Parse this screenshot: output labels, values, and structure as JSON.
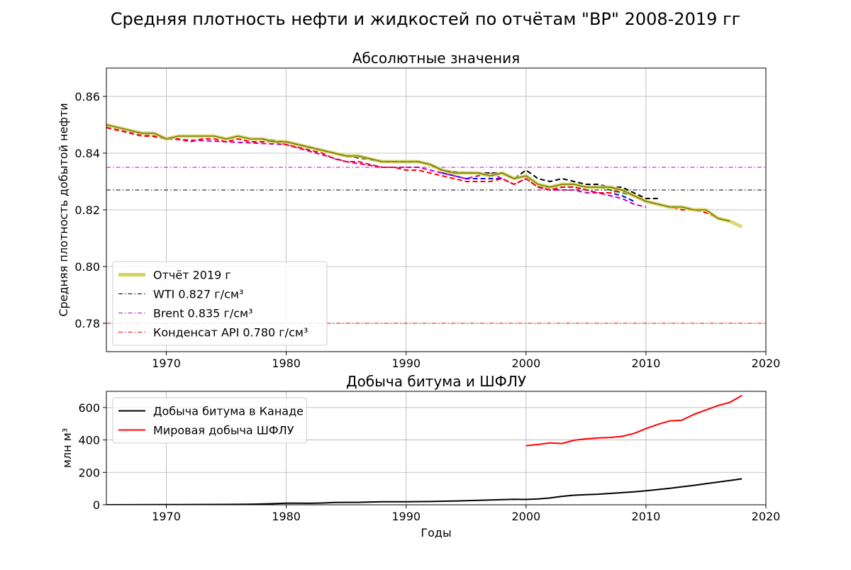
{
  "figure_title": "Средняя плотность нефти и жидкостей по отчётам \"BP\" 2008-2019 гг",
  "chart_data": [
    {
      "type": "line",
      "title": "Абсолютные значения",
      "xlabel": "",
      "ylabel": "Средняя плотность добытой нефти",
      "xlim": [
        1965,
        2020
      ],
      "ylim": [
        0.77,
        0.87
      ],
      "xticks": [
        1970,
        1980,
        1990,
        2000,
        2010,
        2020
      ],
      "yticks": [
        0.78,
        0.8,
        0.82,
        0.84,
        0.86
      ],
      "ytick_labels": [
        "0.78",
        "0.80",
        "0.82",
        "0.84",
        "0.86"
      ],
      "grid": true,
      "legend_position": "lower-left",
      "legend": [
        {
          "label": "Отчёт 2019 г",
          "color": "#d4d45a",
          "style": "thick-solid"
        },
        {
          "label": "WTI 0.827 г/см³",
          "color": "#000000",
          "style": "dashdot"
        },
        {
          "label": "Brent 0.835 г/см³",
          "color": "#c000c0",
          "style": "dashdot"
        },
        {
          "label": "Конденсат API 0.780 г/см³",
          "color": "#ff0000",
          "style": "dashdot"
        }
      ],
      "reference_lines": [
        {
          "value": 0.827,
          "color": "#000000"
        },
        {
          "value": 0.835,
          "color": "#c000c0"
        },
        {
          "value": 0.78,
          "color": "#ff0000"
        }
      ],
      "series": [
        {
          "style": "dashed",
          "color": "#000000",
          "x": [
            1978,
            1980,
            1985,
            1988,
            1991,
            1992,
            1993,
            1995,
            1997,
            1998,
            1999,
            2000,
            2001,
            2002,
            2003,
            2004,
            2005,
            2006,
            2007,
            2008,
            2009,
            2010,
            2011
          ],
          "y": [
            0.845,
            0.844,
            0.839,
            0.837,
            0.837,
            0.836,
            0.834,
            0.833,
            0.833,
            0.833,
            0.831,
            0.834,
            0.831,
            0.83,
            0.831,
            0.83,
            0.829,
            0.829,
            0.828,
            0.828,
            0.826,
            0.824,
            0.824
          ]
        },
        {
          "style": "dashed",
          "color": "#0000ff",
          "x": [
            1993,
            1995,
            1997,
            1998,
            1999,
            2000,
            2001,
            2002,
            2003,
            2004,
            2005,
            2006,
            2007,
            2008,
            2009
          ],
          "y": [
            0.833,
            0.831,
            0.831,
            0.831,
            0.829,
            0.831,
            0.828,
            0.827,
            0.828,
            0.828,
            0.827,
            0.826,
            0.826,
            0.825,
            0.823
          ]
        },
        {
          "style": "dashed",
          "color": "#008000",
          "x": [
            2001,
            2002,
            2003,
            2004,
            2005,
            2006,
            2007,
            2008,
            2009
          ],
          "y": [
            0.828,
            0.828,
            0.829,
            0.829,
            0.828,
            0.828,
            0.827,
            0.826,
            0.825
          ]
        },
        {
          "style": "dashed",
          "color": "#c000c0",
          "x": [
            1965,
            1970,
            1975,
            1980,
            1985,
            1988,
            1990,
            1991,
            1992,
            1993,
            1995,
            1997,
            1998,
            1999,
            2000,
            2001,
            2002,
            2003,
            2004,
            2005,
            2006,
            2007,
            2008,
            2009,
            2010
          ],
          "y": [
            0.849,
            0.845,
            0.844,
            0.843,
            0.837,
            0.835,
            0.835,
            0.835,
            0.834,
            0.833,
            0.831,
            0.833,
            0.831,
            0.829,
            0.831,
            0.828,
            0.827,
            0.827,
            0.827,
            0.826,
            0.826,
            0.825,
            0.824,
            0.822,
            0.821
          ]
        },
        {
          "style": "dashed",
          "color": "#ff0000",
          "x": [
            1965,
            1966,
            1967,
            1968,
            1969,
            1970,
            1971,
            1972,
            1973,
            1974,
            1975,
            1976,
            1977,
            1978,
            1979,
            1980,
            1981,
            1982,
            1983,
            1984,
            1985,
            1986,
            1987,
            1988,
            1989,
            1990,
            1991,
            1992,
            1993,
            1994,
            1995,
            1996,
            1997,
            1998,
            1999,
            2000,
            2001,
            2002,
            2003,
            2004,
            2005,
            2006,
            2007,
            2008,
            2009,
            2010,
            2011,
            2012,
            2013,
            2014,
            2015,
            2016,
            2017
          ],
          "y": [
            0.849,
            0.848,
            0.847,
            0.846,
            0.846,
            0.845,
            0.845,
            0.844,
            0.845,
            0.845,
            0.844,
            0.845,
            0.844,
            0.844,
            0.844,
            0.843,
            0.842,
            0.841,
            0.84,
            0.838,
            0.837,
            0.837,
            0.836,
            0.835,
            0.835,
            0.834,
            0.834,
            0.833,
            0.832,
            0.831,
            0.83,
            0.83,
            0.83,
            0.831,
            0.829,
            0.831,
            0.828,
            0.827,
            0.828,
            0.828,
            0.827,
            0.826,
            0.826,
            0.827,
            0.825,
            0.823,
            0.822,
            0.821,
            0.82,
            0.82,
            0.819,
            0.817,
            0.816
          ]
        },
        {
          "style": "thick-solid",
          "color": "#d4d45a",
          "x": [
            1965,
            1966,
            1967,
            1968,
            1969,
            1970,
            1971,
            1972,
            1973,
            1974,
            1975,
            1976,
            1977,
            1978,
            1979,
            1980,
            1981,
            1982,
            1983,
            1984,
            1985,
            1986,
            1987,
            1988,
            1989,
            1990,
            1991,
            1992,
            1993,
            1994,
            1995,
            1996,
            1997,
            1998,
            1999,
            2000,
            2001,
            2002,
            2003,
            2004,
            2005,
            2006,
            2007,
            2008,
            2009,
            2010,
            2011,
            2012,
            2013,
            2014,
            2015,
            2016,
            2017,
            2018
          ],
          "y": [
            0.85,
            0.849,
            0.848,
            0.847,
            0.847,
            0.845,
            0.846,
            0.846,
            0.846,
            0.846,
            0.845,
            0.846,
            0.845,
            0.845,
            0.844,
            0.844,
            0.843,
            0.842,
            0.841,
            0.84,
            0.839,
            0.839,
            0.838,
            0.837,
            0.837,
            0.837,
            0.837,
            0.836,
            0.834,
            0.833,
            0.833,
            0.833,
            0.832,
            0.833,
            0.831,
            0.832,
            0.829,
            0.828,
            0.829,
            0.829,
            0.828,
            0.828,
            0.828,
            0.827,
            0.825,
            0.823,
            0.822,
            0.821,
            0.821,
            0.82,
            0.82,
            0.817,
            0.816,
            0.814
          ]
        },
        {
          "style": "thin-solid",
          "color": "#6b6b00",
          "x": [
            1965,
            1966,
            1967,
            1968,
            1969,
            1970,
            1971,
            1972,
            1973,
            1974,
            1975,
            1976,
            1977,
            1978,
            1979,
            1980,
            1981,
            1982,
            1983,
            1984,
            1985,
            1986,
            1987,
            1988,
            1989,
            1990,
            1991,
            1992,
            1993,
            1994,
            1995,
            1996,
            1997,
            1998,
            1999,
            2000,
            2001,
            2002,
            2003,
            2004,
            2005,
            2006,
            2007,
            2008,
            2009,
            2010,
            2011,
            2012,
            2013,
            2014,
            2015,
            2016,
            2017
          ],
          "y": [
            0.85,
            0.849,
            0.848,
            0.847,
            0.847,
            0.845,
            0.846,
            0.846,
            0.846,
            0.846,
            0.845,
            0.846,
            0.845,
            0.845,
            0.844,
            0.844,
            0.843,
            0.842,
            0.841,
            0.84,
            0.839,
            0.839,
            0.838,
            0.837,
            0.837,
            0.837,
            0.837,
            0.836,
            0.834,
            0.833,
            0.833,
            0.833,
            0.832,
            0.833,
            0.831,
            0.832,
            0.829,
            0.828,
            0.829,
            0.829,
            0.828,
            0.828,
            0.828,
            0.827,
            0.825,
            0.823,
            0.822,
            0.821,
            0.821,
            0.82,
            0.82,
            0.817,
            0.816
          ]
        }
      ]
    },
    {
      "type": "line",
      "title": "Добыча битума и ШФЛУ",
      "xlabel": "Годы",
      "ylabel": "млн м³",
      "xlim": [
        1965,
        2020
      ],
      "ylim": [
        0,
        700
      ],
      "xticks": [
        1970,
        1980,
        1990,
        2000,
        2010,
        2020
      ],
      "yticks": [
        0,
        200,
        400,
        600
      ],
      "ytick_labels": [
        "0",
        "200",
        "400",
        "600"
      ],
      "grid": true,
      "legend_position": "upper-left",
      "legend": [
        {
          "label": "Добыча битума в Канаде",
          "color": "#000000",
          "style": "solid"
        },
        {
          "label": "Мировая добыча ШФЛУ",
          "color": "#ff0000",
          "style": "solid"
        }
      ],
      "series": [
        {
          "name": "Добыча битума в Канаде",
          "style": "solid",
          "color": "#000000",
          "x": [
            1965,
            1970,
            1975,
            1977,
            1978,
            1979,
            1980,
            1981,
            1982,
            1983,
            1984,
            1985,
            1986,
            1987,
            1988,
            1989,
            1990,
            1992,
            1994,
            1996,
            1998,
            1999,
            2000,
            2001,
            2002,
            2003,
            2004,
            2005,
            2006,
            2007,
            2008,
            2009,
            2010,
            2011,
            2012,
            2013,
            2014,
            2015,
            2016,
            2017,
            2018
          ],
          "y": [
            0,
            1,
            2,
            3,
            5,
            7,
            10,
            10,
            9,
            11,
            14,
            15,
            15,
            17,
            19,
            19,
            19,
            20,
            23,
            27,
            32,
            34,
            33,
            36,
            42,
            52,
            59,
            62,
            65,
            70,
            75,
            80,
            86,
            94,
            102,
            111,
            120,
            130,
            140,
            150,
            160
          ]
        },
        {
          "name": "Мировая добыча ШФЛУ",
          "style": "solid",
          "color": "#ff0000",
          "x": [
            2000,
            2001,
            2002,
            2003,
            2004,
            2005,
            2006,
            2007,
            2008,
            2009,
            2010,
            2011,
            2012,
            2013,
            2014,
            2015,
            2016,
            2017,
            2018
          ],
          "y": [
            365,
            372,
            382,
            378,
            398,
            407,
            412,
            415,
            422,
            440,
            470,
            496,
            518,
            522,
            558,
            585,
            612,
            632,
            675
          ]
        }
      ]
    }
  ]
}
